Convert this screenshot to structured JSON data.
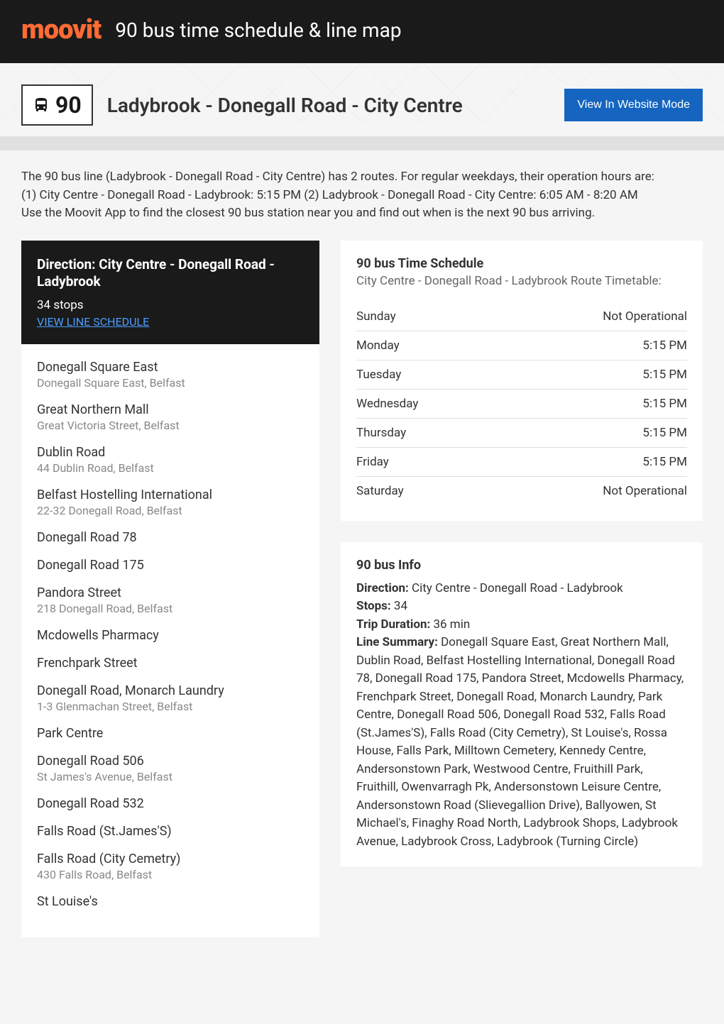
{
  "header": {
    "logo": "moovit",
    "title": "90 bus time schedule & line map"
  },
  "subheader": {
    "route_number": "90",
    "route_name": "Ladybrook - Donegall Road - City Centre",
    "website_mode_btn": "View In Website Mode"
  },
  "description": "The 90 bus line (Ladybrook - Donegall Road - City Centre) has 2 routes. For regular weekdays, their operation hours are:\n(1) City Centre - Donegall Road - Ladybrook: 5:15 PM (2) Ladybrook - Donegall Road - City Centre: 6:05 AM - 8:20 AM\nUse the Moovit App to find the closest 90 bus station near you and find out when is the next 90 bus arriving.",
  "direction_card": {
    "title": "Direction: City Centre - Donegall Road - Ladybrook",
    "stops_count": "34 stops",
    "view_schedule": "VIEW LINE SCHEDULE"
  },
  "stops": [
    {
      "name": "Donegall Square East",
      "address": "Donegall Square East, Belfast"
    },
    {
      "name": "Great Northern Mall",
      "address": "Great Victoria Street, Belfast"
    },
    {
      "name": "Dublin Road",
      "address": "44 Dublin Road, Belfast"
    },
    {
      "name": "Belfast Hostelling International",
      "address": "22-32 Donegall Road, Belfast"
    },
    {
      "name": "Donegall Road 78",
      "address": ""
    },
    {
      "name": "Donegall Road 175",
      "address": ""
    },
    {
      "name": "Pandora Street",
      "address": "218 Donegall Road, Belfast"
    },
    {
      "name": "Mcdowells Pharmacy",
      "address": ""
    },
    {
      "name": "Frenchpark Street",
      "address": ""
    },
    {
      "name": "Donegall Road, Monarch Laundry",
      "address": "1-3 Glenmachan Street, Belfast"
    },
    {
      "name": "Park Centre",
      "address": ""
    },
    {
      "name": "Donegall Road 506",
      "address": "St James's Avenue, Belfast"
    },
    {
      "name": "Donegall Road 532",
      "address": ""
    },
    {
      "name": "Falls Road (St.James'S)",
      "address": ""
    },
    {
      "name": "Falls Road (City Cemetry)",
      "address": "430 Falls Road, Belfast"
    },
    {
      "name": "St Louise's",
      "address": ""
    }
  ],
  "schedule": {
    "title": "90 bus Time Schedule",
    "subtitle": "City Centre - Donegall Road - Ladybrook Route Timetable:",
    "rows": [
      {
        "day": "Sunday",
        "time": "Not Operational"
      },
      {
        "day": "Monday",
        "time": "5:15 PM"
      },
      {
        "day": "Tuesday",
        "time": "5:15 PM"
      },
      {
        "day": "Wednesday",
        "time": "5:15 PM"
      },
      {
        "day": "Thursday",
        "time": "5:15 PM"
      },
      {
        "day": "Friday",
        "time": "5:15 PM"
      },
      {
        "day": "Saturday",
        "time": "Not Operational"
      }
    ]
  },
  "info": {
    "title": "90 bus Info",
    "direction_label": "Direction:",
    "direction_value": " City Centre - Donegall Road - Ladybrook",
    "stops_label": "Stops:",
    "stops_value": " 34",
    "duration_label": "Trip Duration:",
    "duration_value": " 36 min",
    "summary_label": "Line Summary:",
    "summary_value": " Donegall Square East, Great Northern Mall, Dublin Road, Belfast Hostelling International, Donegall Road 78, Donegall Road 175, Pandora Street, Mcdowells Pharmacy, Frenchpark Street, Donegall Road, Monarch Laundry, Park Centre, Donegall Road 506, Donegall Road 532, Falls Road (St.James'S), Falls Road (City Cemetry), St Louise's, Rossa House, Falls Park, Milltown Cemetery, Kennedy Centre, Andersonstown Park, Westwood Centre, Fruithill Park, Fruithill, Owenvarragh Pk, Andersonstown Leisure Centre, Andersonstown Road (Slievegallion Drive), Ballyowen, St Michael's, Finaghy Road North, Ladybrook Shops, Ladybrook Avenue, Ladybrook Cross, Ladybrook (Turning Circle)"
  },
  "colors": {
    "header_bg": "#1a1a1a",
    "logo_color": "#ff6b35",
    "btn_bg": "#1565c0",
    "link_color": "#4a9eff",
    "page_bg": "#f5f5f5",
    "card_bg": "#ffffff",
    "text_primary": "#333333",
    "text_secondary": "#888888",
    "border": "#e0e0e0"
  }
}
